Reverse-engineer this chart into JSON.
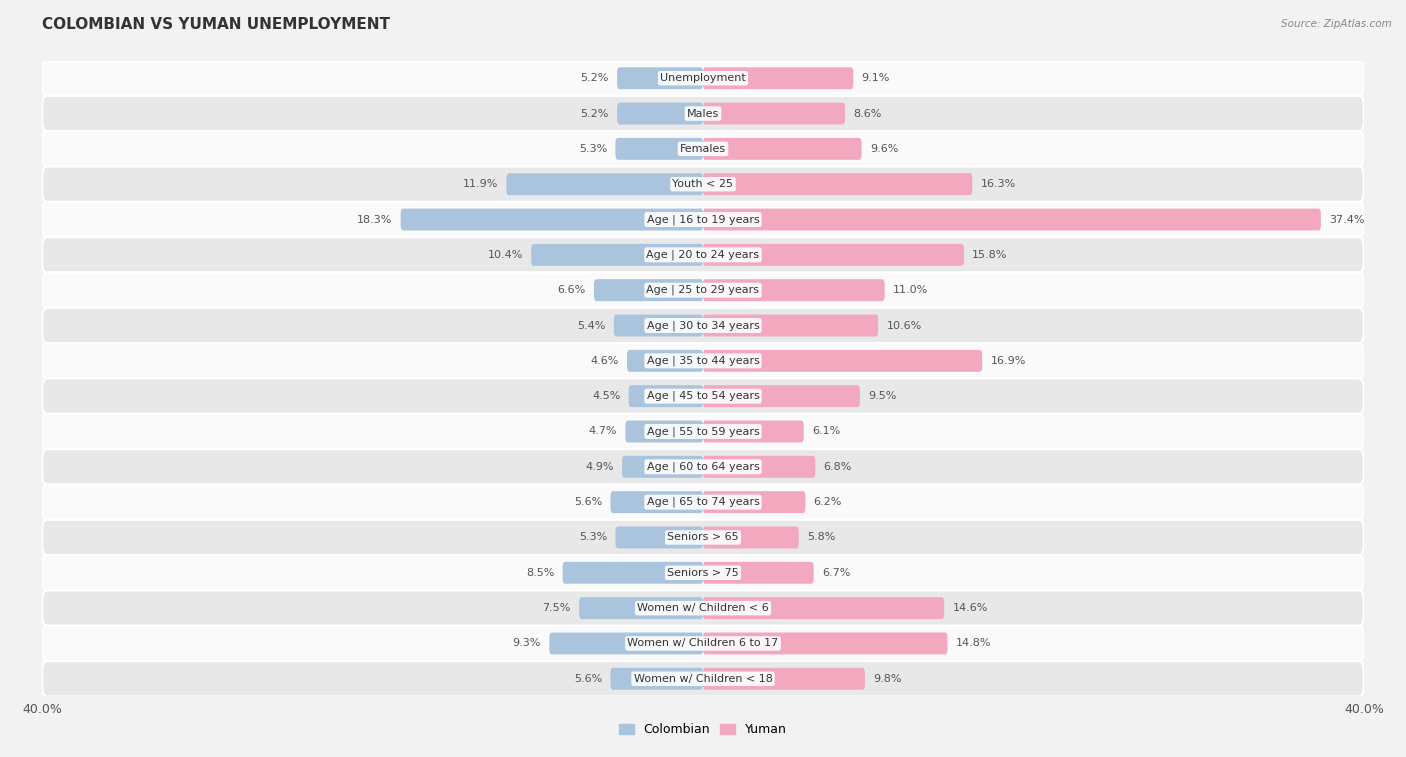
{
  "title": "COLOMBIAN VS YUMAN UNEMPLOYMENT",
  "source": "Source: ZipAtlas.com",
  "categories": [
    "Unemployment",
    "Males",
    "Females",
    "Youth < 25",
    "Age | 16 to 19 years",
    "Age | 20 to 24 years",
    "Age | 25 to 29 years",
    "Age | 30 to 34 years",
    "Age | 35 to 44 years",
    "Age | 45 to 54 years",
    "Age | 55 to 59 years",
    "Age | 60 to 64 years",
    "Age | 65 to 74 years",
    "Seniors > 65",
    "Seniors > 75",
    "Women w/ Children < 6",
    "Women w/ Children 6 to 17",
    "Women w/ Children < 18"
  ],
  "colombian": [
    5.2,
    5.2,
    5.3,
    11.9,
    18.3,
    10.4,
    6.6,
    5.4,
    4.6,
    4.5,
    4.7,
    4.9,
    5.6,
    5.3,
    8.5,
    7.5,
    9.3,
    5.6
  ],
  "yuman": [
    9.1,
    8.6,
    9.6,
    16.3,
    37.4,
    15.8,
    11.0,
    10.6,
    16.9,
    9.5,
    6.1,
    6.8,
    6.2,
    5.8,
    6.7,
    14.6,
    14.8,
    9.8
  ],
  "colombian_color": "#aac4de",
  "yuman_color": "#f2a8be",
  "bg_color": "#f2f2f2",
  "row_light": "#fafafa",
  "row_dark": "#e8e8e8",
  "axis_max": 40.0,
  "legend_colombian": "Colombian",
  "legend_yuman": "Yuman",
  "title_fontsize": 11,
  "label_fontsize": 8,
  "value_fontsize": 8,
  "axis_label_fontsize": 9
}
